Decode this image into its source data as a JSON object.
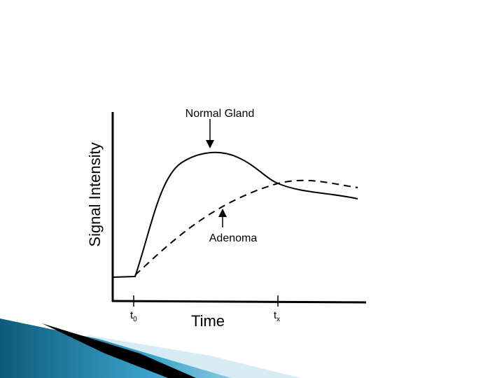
{
  "diagram": {
    "y_axis_label": "Signal Intensity",
    "x_axis_label": "Time",
    "curves": [
      {
        "label": "Normal Gland"
      },
      {
        "label": "Adenoma"
      }
    ],
    "ticks": [
      {
        "main": "t",
        "sub": "0"
      },
      {
        "main": "t",
        "sub": "x"
      }
    ]
  }
}
